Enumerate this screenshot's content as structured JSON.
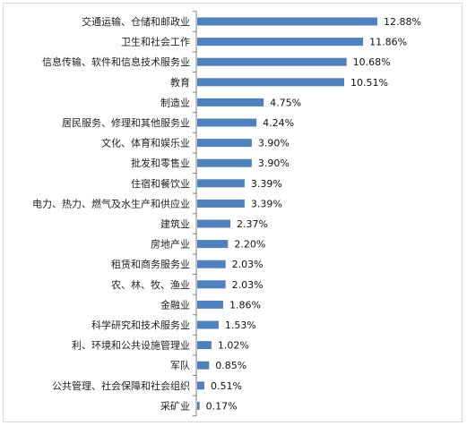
{
  "chart_data": {
    "type": "bar",
    "orientation": "horizontal",
    "categories": [
      "交通运输、仓储和邮政业",
      "卫生和社会工作",
      "信息传输、软件和信息技术服务业",
      "教育",
      "制造业",
      "居民服务、修理和其他服务业",
      "文化、体育和娱乐业",
      "批发和零售业",
      "住宿和餐饮业",
      "电力、热力、燃气及水生产和供应业",
      "建筑业",
      "房地产业",
      "租赁和商务服务业",
      "农、林、牧、渔业",
      "金融业",
      "科学研究和技术服务业",
      "利、环境和公共设施管理业",
      "军队",
      "公共管理、社会保障和社会组织",
      "采矿业"
    ],
    "values": [
      12.88,
      11.86,
      10.68,
      10.51,
      4.75,
      4.24,
      3.9,
      3.9,
      3.39,
      3.39,
      2.37,
      2.2,
      2.03,
      2.03,
      1.86,
      1.53,
      1.02,
      0.85,
      0.51,
      0.17
    ],
    "value_labels": [
      "12.88%",
      "11.86%",
      "10.68%",
      "10.51%",
      "4.75%",
      "4.24%",
      "3.90%",
      "3.90%",
      "3.39%",
      "3.39%",
      "2.37%",
      "2.20%",
      "2.03%",
      "2.03%",
      "1.86%",
      "1.53%",
      "1.02%",
      "0.85%",
      "0.51%",
      "0.17%"
    ],
    "bar_color": "#4f81bd",
    "axis_line_color": "#808080",
    "grid": false,
    "legend": false
  }
}
